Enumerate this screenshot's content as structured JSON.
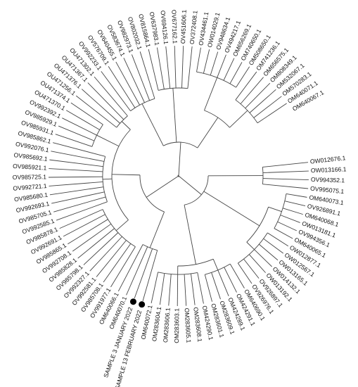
{
  "tree": {
    "leaves": [
      "OW012676.1",
      "OW013166.1",
      "OV994352.1",
      "OV995075.1",
      "OM640073.1",
      "OV926891.1",
      "OM640068.1",
      "OW013181.1",
      "OV994356.1",
      "OM640065.1",
      "OW012877.1",
      "OW012567.1",
      "OW013165.1",
      "OW014132.1",
      "OW013192.1",
      "OV926897.1",
      "OV926976.1",
      "OM640690.1",
      "OM424291.1",
      "OM424289.1",
      "OM283609.1",
      "OM283601.1",
      "OM424290.1",
      "OM283608.1",
      "OM283605.1",
      "OM283603.1",
      "OM283606.1",
      "OM283604.1",
      "OM640072.1",
      "SAMPLE 13 FEBRUARY 2022",
      "SAMPLE 3 JANUARY 2022",
      "OM640070.1",
      "OM640066.1",
      "OV991977.1",
      "OV985708.1",
      "OV992581.1",
      "OV992327.1",
      "OV985798.1",
      "OV985828.1",
      "OV992708.1",
      "OV985865.1",
      "OV992691.1",
      "OV985878.1",
      "OV992585.1",
      "OV985705.1",
      "OV992693.1",
      "OV985680.1",
      "OV992721.1",
      "OV985725.1",
      "OV985921.1",
      "OV985692.1",
      "OV992076.1",
      "OV985862.1",
      "OV985931.1",
      "OV985929.1",
      "OV992392.1",
      "OU471370.1",
      "OU471374.1",
      "OU471256.1",
      "OU471376.1",
      "OU471367.1",
      "OU471302.1",
      "OV992233.1",
      "OV576709.1",
      "OV640455.1",
      "OV583674.1",
      "OV982973.1",
      "OV802032.1",
      "OV815864.1",
      "OV637983.1",
      "OV694126.1",
      "OV677162.1",
      "OV451606.1",
      "OV372408.1",
      "OV434461.1",
      "OW014029.1",
      "OV948634.1",
      "OV494217.1",
      "OM656269.1",
      "OM740650.1",
      "OM508650.1",
      "OM741236.1",
      "OM656575.1",
      "OM808349.1",
      "OM532067.1",
      "OM570283.1",
      "OM640071.1",
      "OM640067.1"
    ],
    "highlighted": [
      "SAMPLE 13 FEBRUARY 2022",
      "SAMPLE 3 JANUARY 2022"
    ]
  },
  "colors": {
    "branch": "#444444",
    "text": "#111111",
    "marker": "#000000"
  }
}
